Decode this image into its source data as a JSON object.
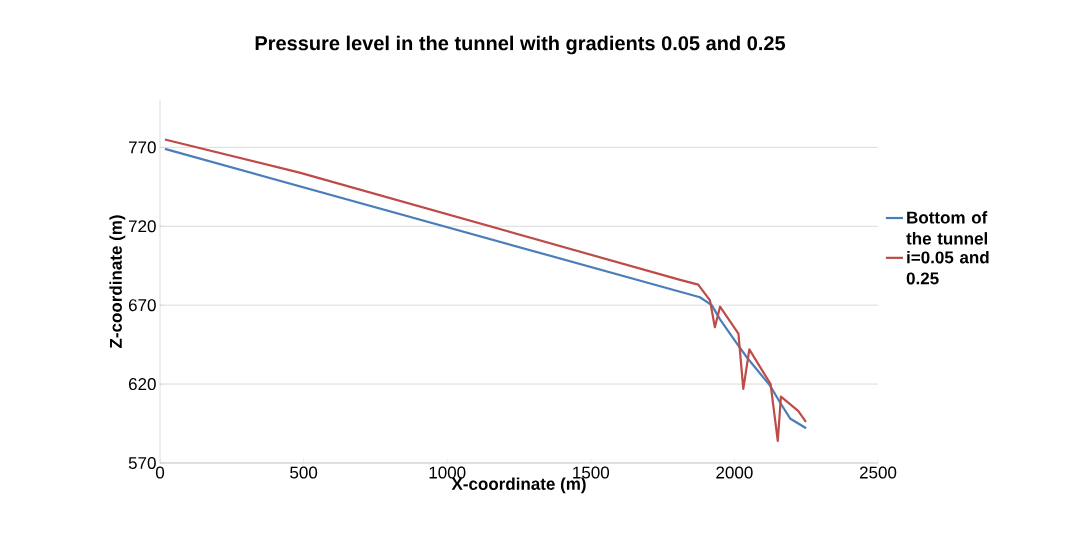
{
  "chart_data": {
    "type": "line",
    "title": "Pressure level in the tunnel with gradients 0.05 and 0.25",
    "xlabel": "X-coordinate (m)",
    "ylabel": "Z-coordinate (m)",
    "xlim": [
      0,
      2500
    ],
    "xticks": [
      0,
      500,
      1000,
      1500,
      2000,
      2500
    ],
    "ylim": [
      570,
      800
    ],
    "yticks": [
      570,
      620,
      670,
      720,
      770
    ],
    "grid": "y",
    "legend": "right",
    "marker": "none",
    "line_style": "solid",
    "series": [
      {
        "name": "Bottom of the tunnel",
        "color": "#4a7ebb",
        "x": [
          17,
          1880,
          1921,
          1950,
          1996,
          2043,
          2124,
          2160,
          2195,
          2250
        ],
        "values": [
          769,
          675,
          670,
          661,
          649,
          637,
          619,
          608,
          598,
          592
        ]
      },
      {
        "name": "i=0.05 and 0.25",
        "color": "#be4b48",
        "x": [
          17,
          486,
          1811,
          1874,
          1915,
          1932,
          1950,
          2014,
          2031,
          2052,
          2126,
          2151,
          2162,
          2222,
          2249
        ],
        "values": [
          775,
          754,
          686,
          683,
          673,
          656,
          669,
          652,
          617,
          642,
          620,
          584,
          612,
          603,
          596
        ]
      }
    ]
  }
}
